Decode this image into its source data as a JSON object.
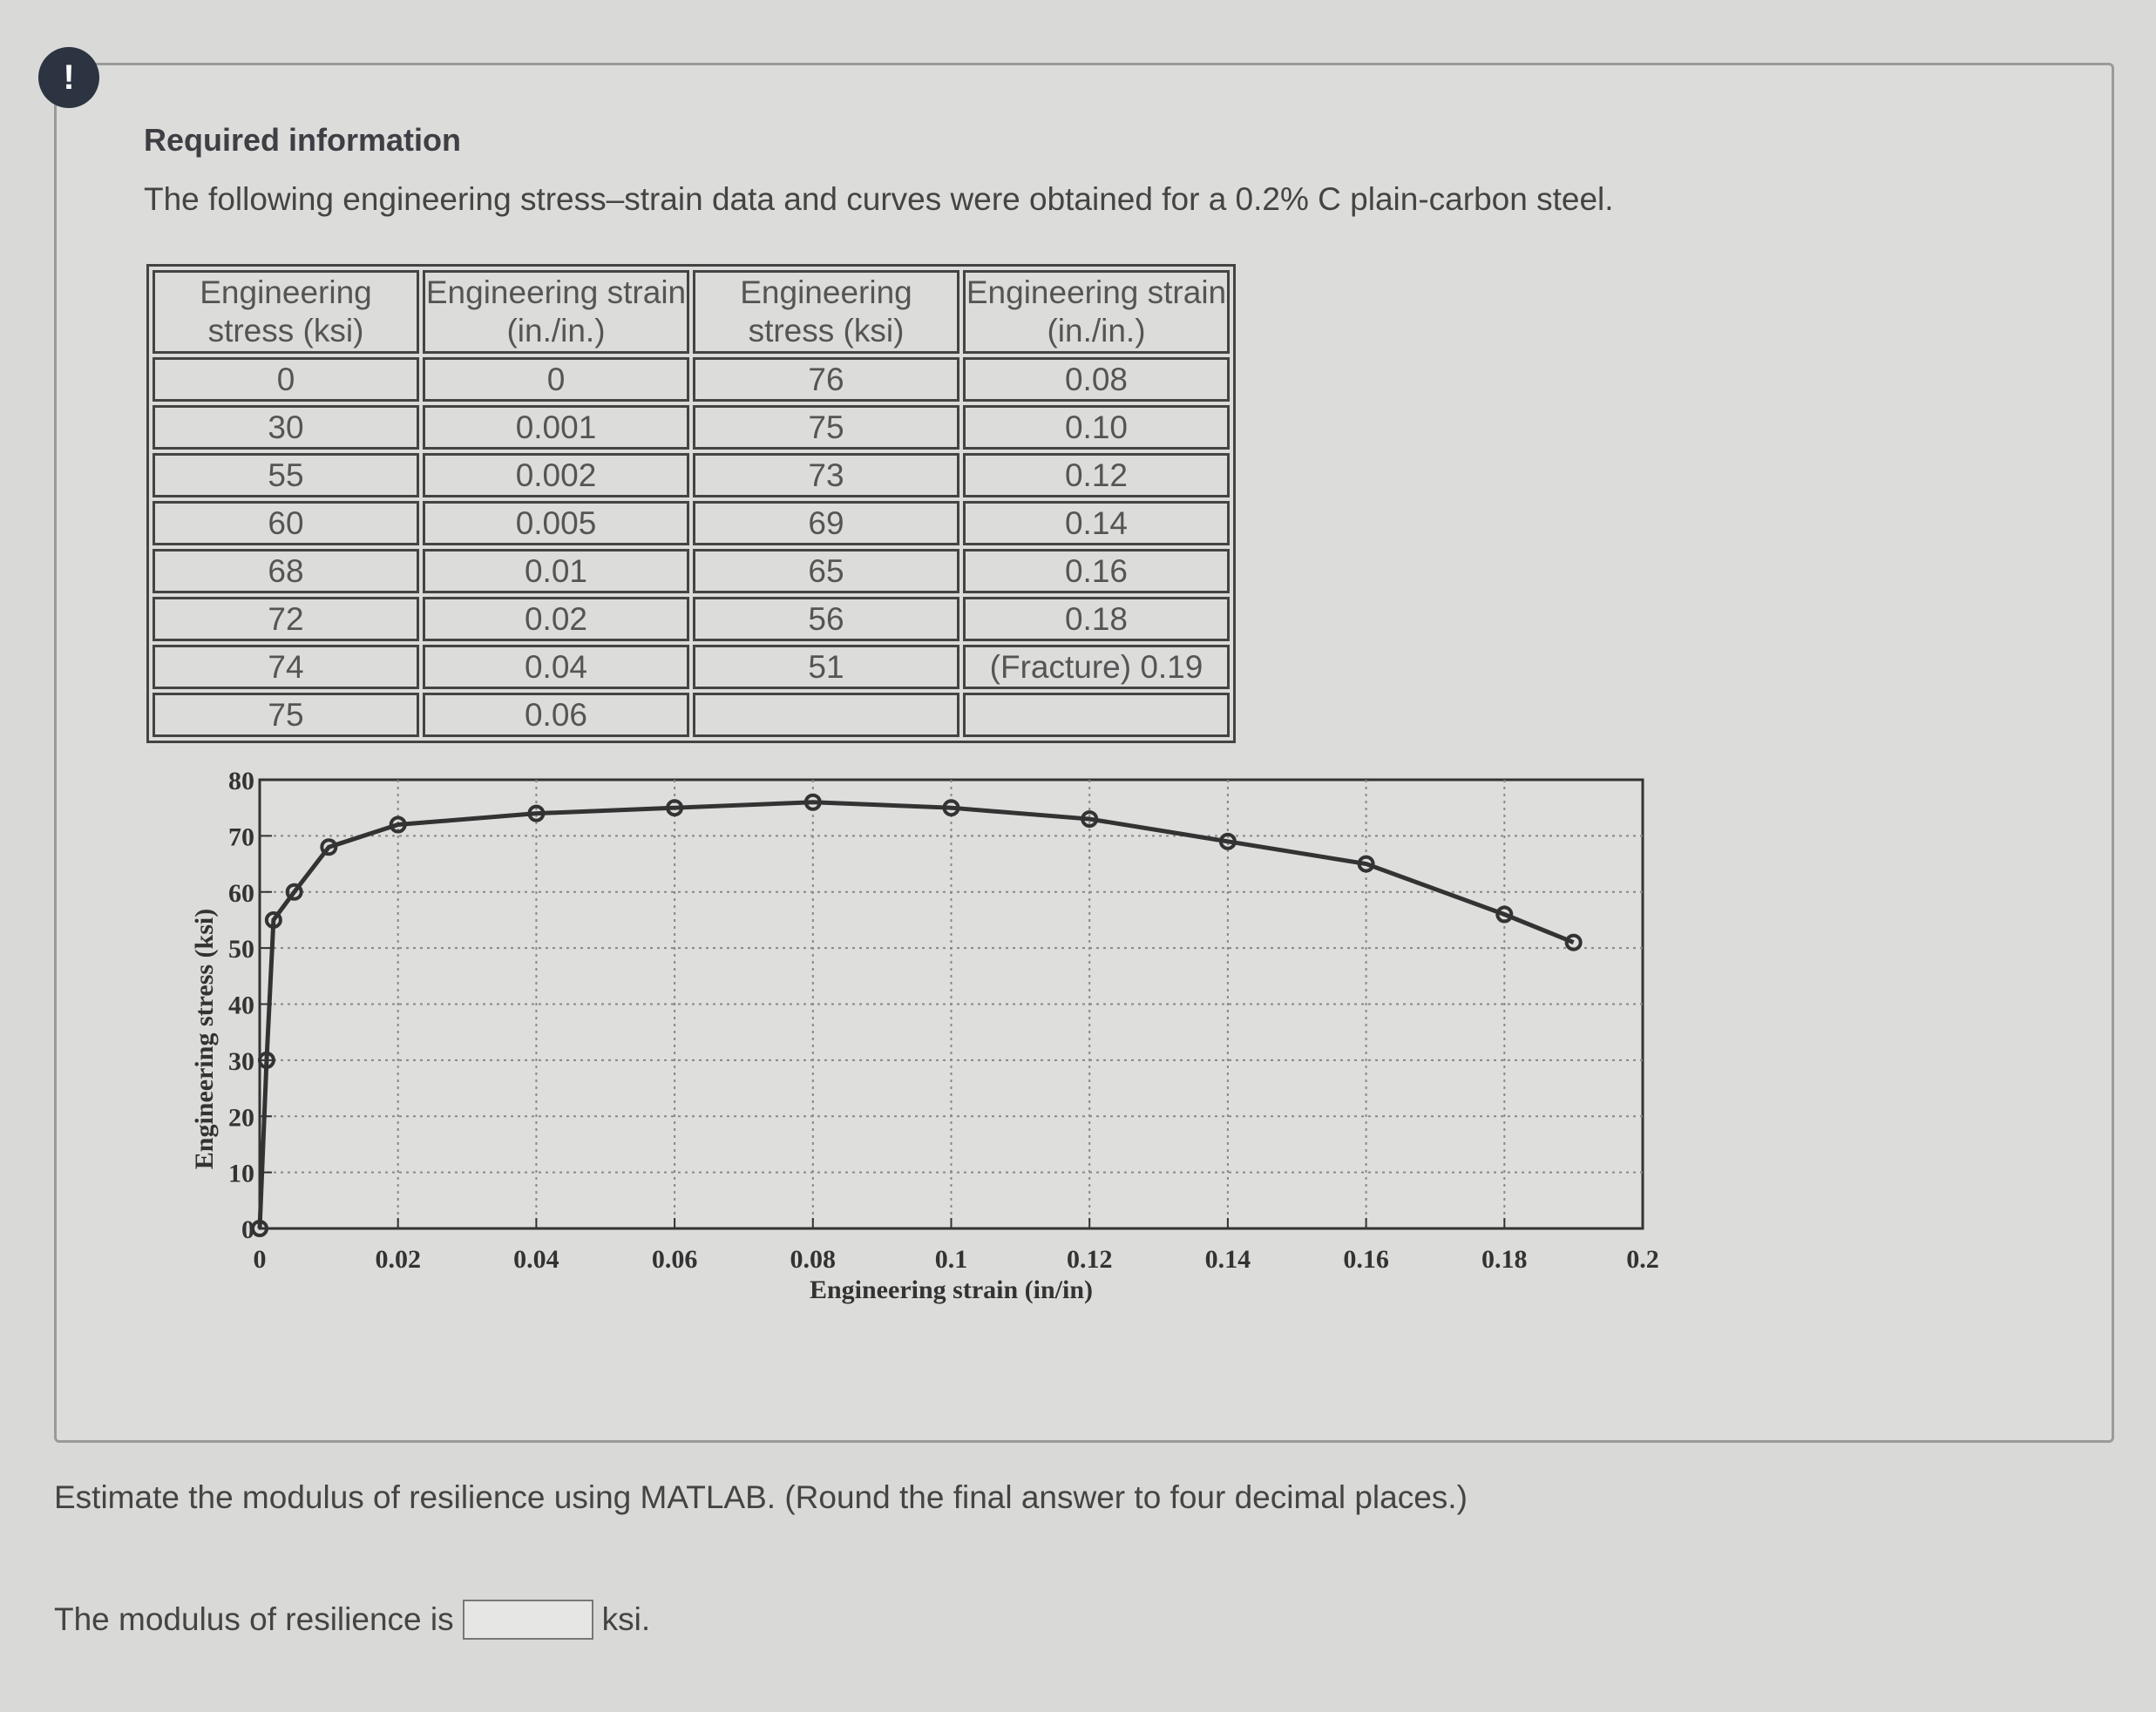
{
  "header": {
    "title": "Required information",
    "intro": "The following engineering stress–strain data and curves were obtained for a 0.2% C plain-carbon steel."
  },
  "table": {
    "headers": [
      "Engineering stress (ksi)",
      "Engineering strain (in./in.)",
      "Engineering stress (ksi)",
      "Engineering strain (in./in.)"
    ],
    "rows": [
      [
        "0",
        "0",
        "76",
        "0.08"
      ],
      [
        "30",
        "0.001",
        "75",
        "0.10"
      ],
      [
        "55",
        "0.002",
        "73",
        "0.12"
      ],
      [
        "60",
        "0.005",
        "69",
        "0.14"
      ],
      [
        "68",
        "0.01",
        "65",
        "0.16"
      ],
      [
        "72",
        "0.02",
        "56",
        "0.18"
      ],
      [
        "74",
        "0.04",
        "51",
        "(Fracture) 0.19"
      ],
      [
        "75",
        "0.06",
        "",
        ""
      ]
    ]
  },
  "chart_data": {
    "type": "line",
    "xlabel": "Engineering strain (in/in)",
    "ylabel": "Engineering stress (ksi)",
    "xlim": [
      0,
      0.2
    ],
    "ylim": [
      0,
      80
    ],
    "xticks": [
      "0",
      "0.02",
      "0.04",
      "0.06",
      "0.08",
      "0.1",
      "0.12",
      "0.14",
      "0.16",
      "0.18",
      "0.2"
    ],
    "yticks": [
      "0",
      "10",
      "20",
      "30",
      "40",
      "50",
      "60",
      "70",
      "80"
    ],
    "grid": true,
    "x": [
      0,
      0.001,
      0.002,
      0.005,
      0.01,
      0.02,
      0.04,
      0.06,
      0.08,
      0.1,
      0.12,
      0.14,
      0.16,
      0.18,
      0.19
    ],
    "y": [
      0,
      30,
      55,
      60,
      68,
      72,
      74,
      75,
      76,
      75,
      73,
      69,
      65,
      56,
      51
    ]
  },
  "question": {
    "text": "Estimate the modulus of resilience using MATLAB. (Round the final answer to four decimal places.)",
    "answer_prefix": "The modulus of resilience is",
    "answer_value": "",
    "unit": "ksi."
  },
  "colors": {
    "alert": "#2b3440"
  }
}
